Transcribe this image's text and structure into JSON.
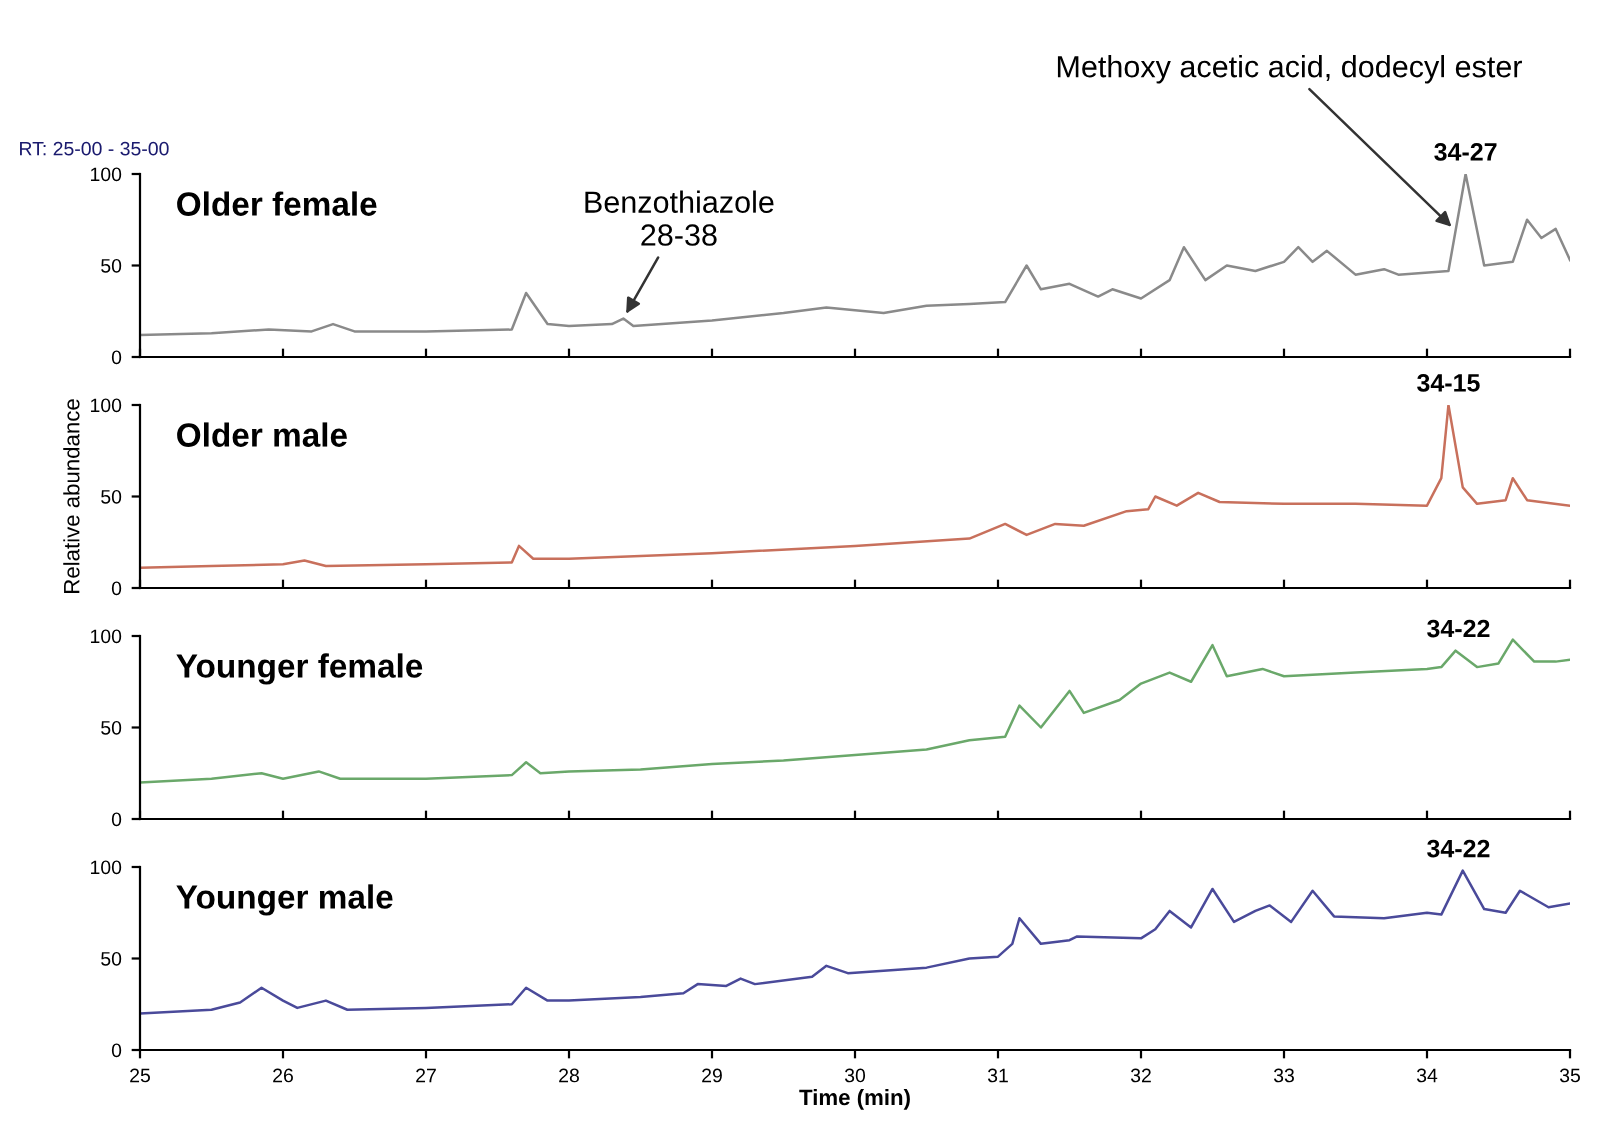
{
  "chart_data": [
    {
      "type": "line",
      "title": "Older female",
      "annotations": [
        "RT: 25-00 - 35-00",
        {
          "text": "Benzothiazole\n28-38",
          "x": 28.38,
          "y": 21
        },
        {
          "text": "Methoxy acetic acid, dodecyl ester",
          "x": 34.2,
          "y": 69
        },
        {
          "text": "34-27",
          "x": 34.27,
          "y": 100
        }
      ],
      "xlim": [
        25,
        35
      ],
      "xticks": [
        25,
        26,
        27,
        28,
        29,
        30,
        31,
        32,
        33,
        34,
        35
      ],
      "ylim": [
        0,
        100
      ],
      "yticks": [
        0,
        50,
        100
      ],
      "tick_labels": "y",
      "series": [
        {
          "color": "#8a8a8a",
          "x": [
            25,
            25.5,
            25.9,
            26.2,
            26.35,
            26.5,
            27,
            27.6,
            27.7,
            27.85,
            28,
            28.3,
            28.38,
            28.45,
            29,
            29.5,
            29.8,
            30.2,
            30.5,
            30.8,
            31.05,
            31.2,
            31.3,
            31.5,
            31.7,
            31.8,
            32,
            32.2,
            32.3,
            32.45,
            32.6,
            32.8,
            33,
            33.1,
            33.2,
            33.3,
            33.5,
            33.7,
            33.8,
            34.15,
            34.27,
            34.4,
            34.6,
            34.7,
            34.8,
            34.9,
            35
          ],
          "values": [
            12,
            13,
            15,
            14,
            18,
            14,
            14,
            15,
            35,
            18,
            17,
            18,
            21,
            17,
            20,
            24,
            27,
            24,
            28,
            29,
            30,
            50,
            37,
            40,
            33,
            37,
            32,
            42,
            60,
            42,
            50,
            47,
            52,
            60,
            52,
            58,
            45,
            48,
            45,
            47,
            100,
            50,
            52,
            75,
            65,
            70,
            53
          ]
        }
      ]
    },
    {
      "type": "line",
      "title": "Older male",
      "ylabel": "Relative abundance",
      "annotations": [
        {
          "text": "34-15",
          "x": 34.15,
          "y": 100
        }
      ],
      "xlim": [
        25,
        35
      ],
      "xticks": [
        25,
        26,
        27,
        28,
        29,
        30,
        31,
        32,
        33,
        34,
        35
      ],
      "ylim": [
        0,
        100
      ],
      "yticks": [
        0,
        50,
        100
      ],
      "tick_labels": "y",
      "series": [
        {
          "color": "#c8705c",
          "x": [
            25,
            25.5,
            26,
            26.15,
            26.3,
            27,
            27.6,
            27.65,
            27.75,
            28,
            29,
            30,
            30.8,
            31.05,
            31.2,
            31.4,
            31.6,
            31.9,
            32.05,
            32.1,
            32.25,
            32.4,
            32.55,
            33,
            33.5,
            34,
            34.1,
            34.15,
            34.25,
            34.35,
            34.55,
            34.6,
            34.7,
            35
          ],
          "values": [
            11,
            12,
            13,
            15,
            12,
            13,
            14,
            23,
            16,
            16,
            19,
            23,
            27,
            35,
            29,
            35,
            34,
            42,
            43,
            50,
            45,
            52,
            47,
            46,
            46,
            45,
            60,
            100,
            55,
            46,
            48,
            60,
            48,
            45
          ]
        }
      ]
    },
    {
      "type": "line",
      "title": "Younger female",
      "annotations": [
        {
          "text": "34-22",
          "x": 34.22,
          "y": 92
        }
      ],
      "xlim": [
        25,
        35
      ],
      "xticks": [
        25,
        26,
        27,
        28,
        29,
        30,
        31,
        32,
        33,
        34,
        35
      ],
      "ylim": [
        0,
        100
      ],
      "yticks": [
        0,
        50,
        100
      ],
      "tick_labels": "y",
      "series": [
        {
          "color": "#6aa86a",
          "x": [
            25,
            25.5,
            25.85,
            26,
            26.25,
            26.4,
            27,
            27.6,
            27.7,
            27.8,
            28,
            28.5,
            29,
            29.5,
            30,
            30.5,
            30.8,
            31.05,
            31.15,
            31.3,
            31.5,
            31.6,
            31.85,
            32,
            32.2,
            32.35,
            32.5,
            32.6,
            32.85,
            33,
            33.5,
            34,
            34.1,
            34.2,
            34.35,
            34.5,
            34.6,
            34.75,
            34.9,
            35
          ],
          "values": [
            20,
            22,
            25,
            22,
            26,
            22,
            22,
            24,
            31,
            25,
            26,
            27,
            30,
            32,
            35,
            38,
            43,
            45,
            62,
            50,
            70,
            58,
            65,
            74,
            80,
            75,
            95,
            78,
            82,
            78,
            80,
            82,
            83,
            92,
            83,
            85,
            98,
            86,
            86,
            87
          ]
        }
      ]
    },
    {
      "type": "line",
      "title": "Younger male",
      "xlabel": "Time (min)",
      "annotations": [
        {
          "text": "34-22",
          "x": 34.22,
          "y": 98
        }
      ],
      "xlim": [
        25,
        35
      ],
      "xticks": [
        25,
        26,
        27,
        28,
        29,
        30,
        31,
        32,
        33,
        34,
        35
      ],
      "ylim": [
        0,
        100
      ],
      "yticks": [
        0,
        50,
        100
      ],
      "series": [
        {
          "color": "#4a4a9a",
          "x": [
            25,
            25.5,
            25.7,
            25.85,
            26,
            26.1,
            26.3,
            26.45,
            27,
            27.6,
            27.7,
            27.85,
            28,
            28.5,
            28.8,
            28.9,
            29.1,
            29.2,
            29.3,
            29.7,
            29.8,
            29.95,
            30.5,
            30.8,
            31,
            31.1,
            31.15,
            31.3,
            31.5,
            31.55,
            32,
            32.1,
            32.2,
            32.35,
            32.5,
            32.65,
            32.8,
            32.9,
            33.05,
            33.2,
            33.35,
            33.7,
            34,
            34.1,
            34.25,
            34.4,
            34.55,
            34.65,
            34.85,
            35
          ],
          "values": [
            20,
            22,
            26,
            34,
            27,
            23,
            27,
            22,
            23,
            25,
            34,
            27,
            27,
            29,
            31,
            36,
            35,
            39,
            36,
            40,
            46,
            42,
            45,
            50,
            51,
            58,
            72,
            58,
            60,
            62,
            61,
            66,
            76,
            67,
            88,
            70,
            76,
            79,
            70,
            87,
            73,
            72,
            75,
            74,
            98,
            77,
            75,
            87,
            78,
            80
          ]
        }
      ]
    }
  ]
}
